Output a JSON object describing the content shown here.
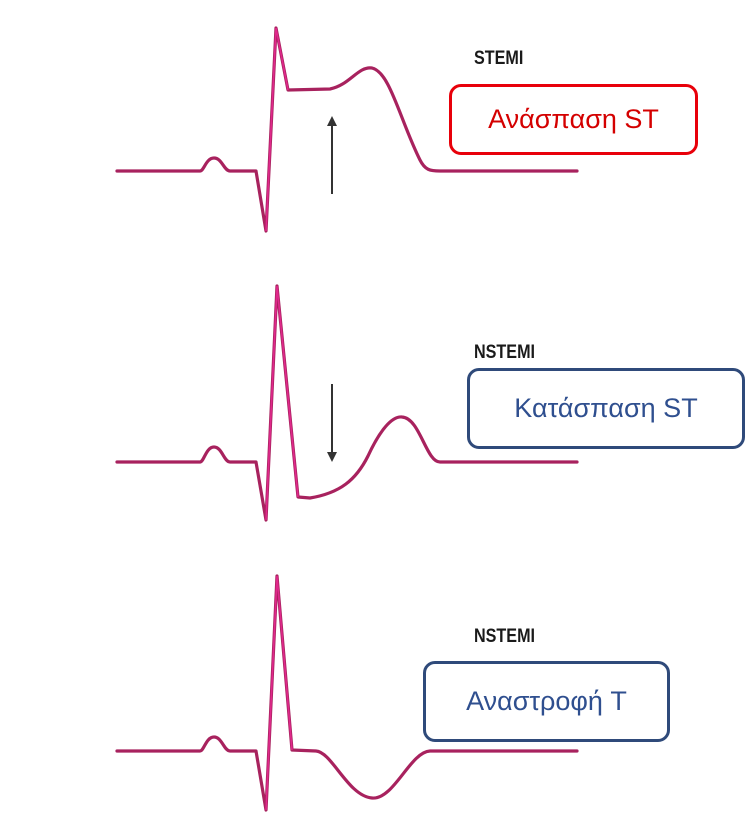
{
  "colors": {
    "trace": "#a8225e",
    "trace_highlight": "#e0288c",
    "stemi_box": "#e8000a",
    "stemi_text": "#d40000",
    "nstemi_box": "#2f4a7a",
    "nstemi_text": "#2f4f8f"
  },
  "panels": [
    {
      "heading": "STEMI",
      "label": "Ανάσπαση ST",
      "arrow": "up-arrow-icon"
    },
    {
      "heading": "NSTEMI",
      "label": "Κατάσπαση ST",
      "arrow": "down-arrow-icon"
    },
    {
      "heading": "NSTEMI",
      "label": "Αναστροφή T",
      "arrow": ""
    }
  ]
}
